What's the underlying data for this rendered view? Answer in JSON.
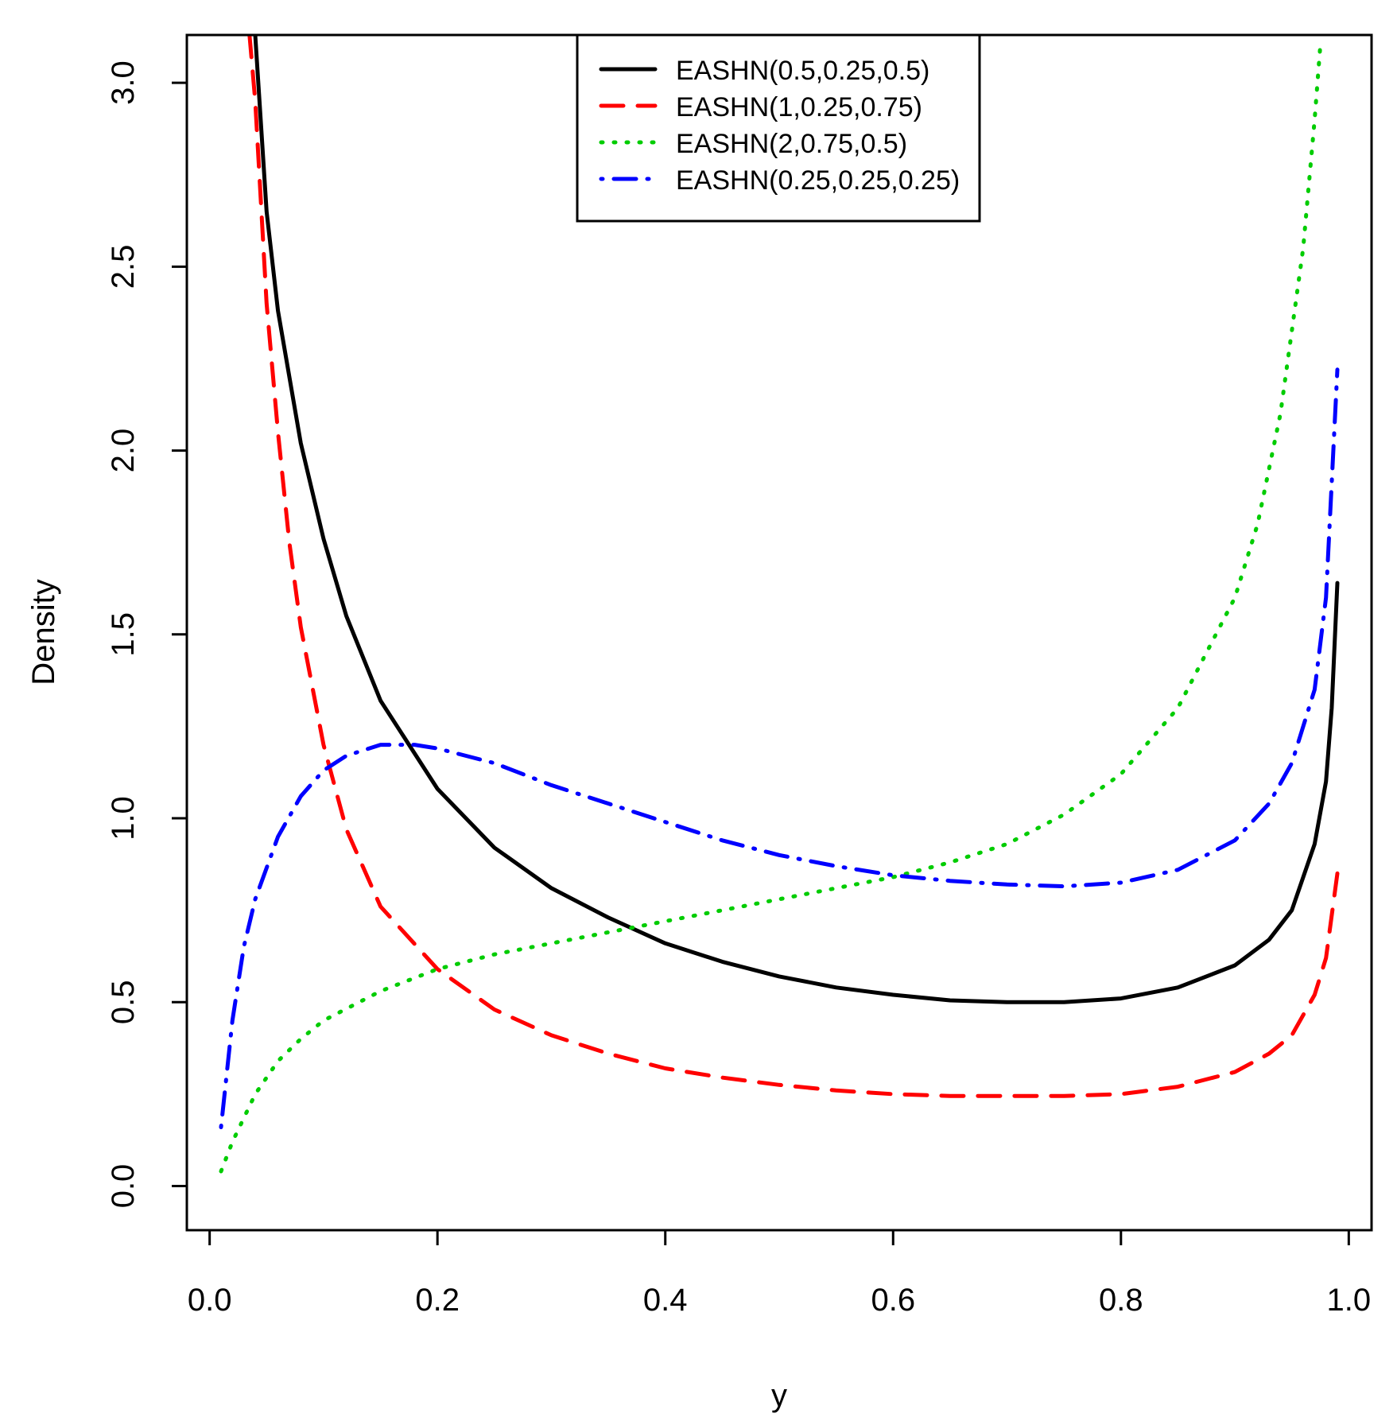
{
  "chart_data": {
    "type": "line",
    "title": "",
    "xlabel": "y",
    "ylabel": "Density",
    "xlim": [
      -0.02,
      1.02
    ],
    "ylim": [
      -0.12,
      3.13
    ],
    "grid": false,
    "legend_position": "top-center",
    "x_ticks": [
      0.0,
      0.2,
      0.4,
      0.6,
      0.8,
      1.0
    ],
    "x_tick_labels": [
      "0.0",
      "0.2",
      "0.4",
      "0.6",
      "0.8",
      "1.0"
    ],
    "y_ticks": [
      0.0,
      0.5,
      1.0,
      1.5,
      2.0,
      2.5,
      3.0
    ],
    "y_tick_labels": [
      "0.0",
      "0.5",
      "1.0",
      "1.5",
      "2.0",
      "2.5",
      "3.0"
    ],
    "series": [
      {
        "name": "EASHN(0.5,0.25,0.5)",
        "color": "#000000",
        "line_style": "solid",
        "x": [
          0.04,
          0.05,
          0.06,
          0.08,
          0.1,
          0.12,
          0.15,
          0.2,
          0.25,
          0.3,
          0.35,
          0.4,
          0.45,
          0.5,
          0.55,
          0.6,
          0.65,
          0.7,
          0.75,
          0.8,
          0.85,
          0.9,
          0.93,
          0.95,
          0.97,
          0.98,
          0.985,
          0.99
        ],
        "y": [
          3.13,
          2.65,
          2.38,
          2.02,
          1.76,
          1.55,
          1.32,
          1.08,
          0.92,
          0.81,
          0.73,
          0.66,
          0.61,
          0.57,
          0.54,
          0.52,
          0.505,
          0.5,
          0.5,
          0.51,
          0.54,
          0.6,
          0.67,
          0.75,
          0.93,
          1.1,
          1.3,
          1.64
        ]
      },
      {
        "name": "EASHN(1,0.25,0.75)",
        "color": "#ff0000",
        "line_style": "dashed",
        "x": [
          0.035,
          0.04,
          0.05,
          0.06,
          0.07,
          0.08,
          0.1,
          0.12,
          0.15,
          0.2,
          0.25,
          0.3,
          0.35,
          0.4,
          0.45,
          0.5,
          0.55,
          0.6,
          0.65,
          0.7,
          0.75,
          0.8,
          0.85,
          0.9,
          0.93,
          0.95,
          0.97,
          0.98,
          0.99
        ],
        "y": [
          3.13,
          2.95,
          2.4,
          2.05,
          1.75,
          1.52,
          1.2,
          0.97,
          0.76,
          0.59,
          0.48,
          0.41,
          0.36,
          0.32,
          0.295,
          0.275,
          0.26,
          0.25,
          0.245,
          0.245,
          0.245,
          0.25,
          0.27,
          0.31,
          0.36,
          0.41,
          0.52,
          0.62,
          0.85
        ]
      },
      {
        "name": "EASHN(2,0.75,0.5)",
        "color": "#00cc00",
        "line_style": "dotted",
        "x": [
          0.01,
          0.02,
          0.04,
          0.06,
          0.08,
          0.1,
          0.15,
          0.2,
          0.25,
          0.3,
          0.35,
          0.4,
          0.45,
          0.5,
          0.55,
          0.6,
          0.65,
          0.7,
          0.75,
          0.8,
          0.85,
          0.9,
          0.92,
          0.94,
          0.96,
          0.97,
          0.975
        ],
        "y": [
          0.04,
          0.12,
          0.25,
          0.34,
          0.4,
          0.45,
          0.53,
          0.59,
          0.63,
          0.66,
          0.69,
          0.72,
          0.75,
          0.78,
          0.81,
          0.84,
          0.88,
          0.93,
          1.01,
          1.12,
          1.3,
          1.6,
          1.8,
          2.1,
          2.55,
          2.9,
          3.1
        ]
      },
      {
        "name": "EASHN(0.25,0.25,0.25)",
        "color": "#0000ff",
        "line_style": "dotdash",
        "x": [
          0.01,
          0.02,
          0.03,
          0.04,
          0.06,
          0.08,
          0.1,
          0.12,
          0.15,
          0.18,
          0.2,
          0.25,
          0.3,
          0.35,
          0.4,
          0.45,
          0.5,
          0.55,
          0.6,
          0.65,
          0.7,
          0.75,
          0.8,
          0.85,
          0.9,
          0.93,
          0.95,
          0.97,
          0.98,
          0.99
        ],
        "y": [
          0.16,
          0.45,
          0.65,
          0.78,
          0.95,
          1.06,
          1.13,
          1.17,
          1.2,
          1.2,
          1.19,
          1.15,
          1.09,
          1.04,
          0.99,
          0.94,
          0.9,
          0.87,
          0.845,
          0.83,
          0.82,
          0.815,
          0.825,
          0.86,
          0.94,
          1.04,
          1.15,
          1.35,
          1.6,
          2.22
        ]
      }
    ]
  }
}
